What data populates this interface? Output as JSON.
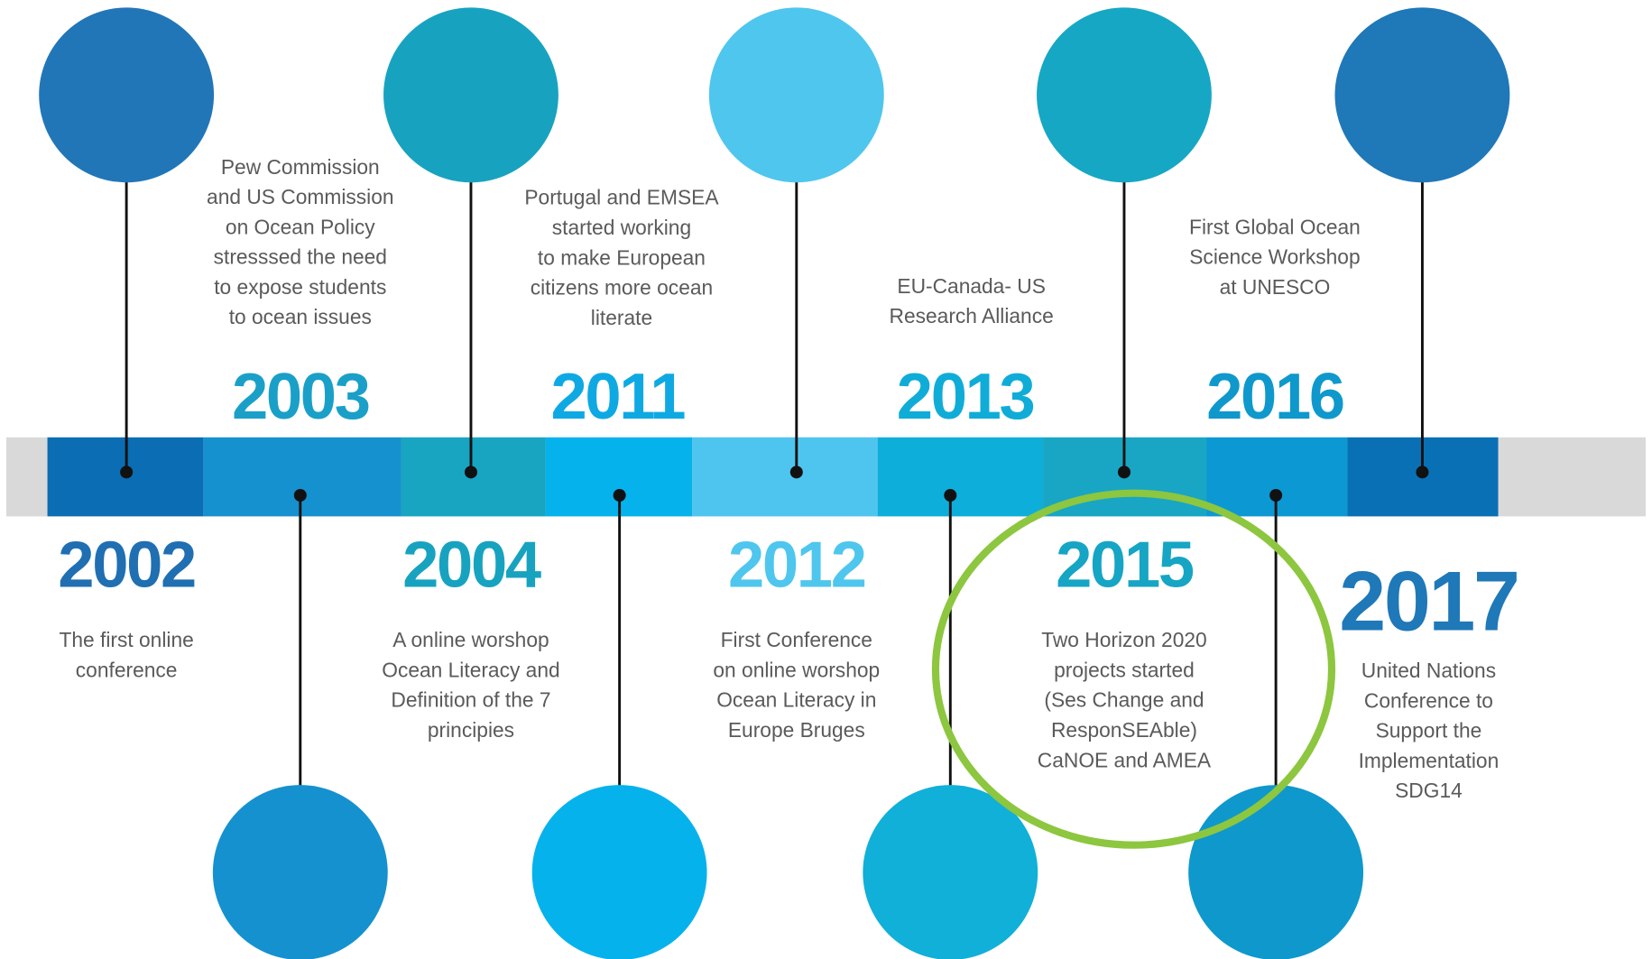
{
  "events": [
    {
      "year": "2002",
      "color": "#1f6fb2",
      "circle": "#2176b8",
      "text": [
        "The first online",
        "conference"
      ]
    },
    {
      "year": "2003",
      "color": "#1aa0c8",
      "circle": "#1591cf",
      "text": [
        "Pew Commission",
        "and US Commission",
        "on Ocean Policy",
        "stresssed the need",
        "to expose students",
        "to ocean issues"
      ]
    },
    {
      "year": "2004",
      "color": "#17a3c0",
      "circle": "#17a3c0",
      "text": [
        "A online worshop",
        "Ocean Literacy  and",
        "Definition of the 7",
        "principies"
      ]
    },
    {
      "year": "2011",
      "color": "#0ea9e3",
      "circle": "#06b2ec",
      "text": [
        "Portugal and EMSEA",
        "started working",
        "to make European",
        "citizens more ocean",
        "literate"
      ]
    },
    {
      "year": "2012",
      "color": "#4fc6ee",
      "circle": "#4fc6ee",
      "text": [
        "First Conference",
        "on online worshop",
        "Ocean Literacy in",
        "Europe Bruges"
      ]
    },
    {
      "year": "2013",
      "color": "#10acd8",
      "circle": "#10b0d8",
      "text": [
        "EU-Canada- US",
        "Research Alliance"
      ]
    },
    {
      "year": "2015",
      "color": "#16a5c4",
      "circle": "#16a7c4",
      "text": [
        "Two Horizon 2020",
        "projects started",
        "(Ses Change and",
        "ResponSEAble)",
        "CaNOE and AMEA"
      ]
    },
    {
      "year": "2016",
      "color": "#0f98cc",
      "circle": "#0f98cc",
      "text": [
        "First Global Ocean",
        "Science Workshop",
        "at UNESCO"
      ]
    },
    {
      "year": "2017",
      "color": "#1f78b8",
      "circle": "#1f78b8",
      "text": [
        "United Nations",
        "Conference to",
        "Support the",
        "Implementation",
        "SDG14"
      ]
    }
  ]
}
